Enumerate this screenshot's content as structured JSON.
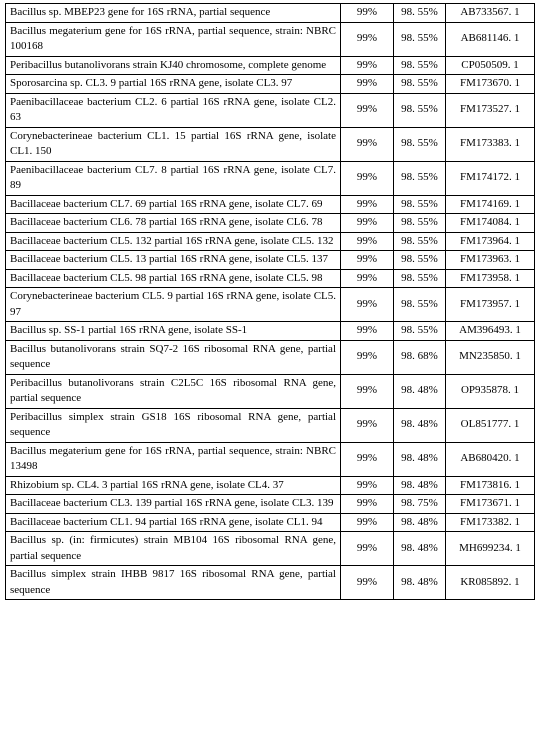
{
  "table": {
    "rows": [
      [
        "Bacillus sp. MBEP23 gene for 16S rRNA, partial sequence",
        "99%",
        "98. 55%",
        "AB733567. 1"
      ],
      [
        "Bacillus megaterium gene for 16S rRNA, partial sequence, strain: NBRC 100168",
        "99%",
        "98. 55%",
        "AB681146. 1"
      ],
      [
        "Peribacillus butanolivorans strain KJ40 chromosome, complete genome",
        "99%",
        "98. 55%",
        "CP050509. 1"
      ],
      [
        "Sporosarcina sp. CL3. 9 partial 16S rRNA gene, isolate CL3. 97",
        "99%",
        "98. 55%",
        "FM173670. 1"
      ],
      [
        "Paenibacillaceae bacterium CL2. 6 partial 16S rRNA gene, isolate CL2. 63",
        "99%",
        "98. 55%",
        "FM173527. 1"
      ],
      [
        "Corynebacterineae bacterium CL1. 15 partial 16S rRNA gene, isolate CL1. 150",
        "99%",
        "98. 55%",
        "FM173383. 1"
      ],
      [
        "Paenibacillaceae bacterium CL7. 8 partial 16S rRNA gene, isolate CL7. 89",
        "99%",
        "98. 55%",
        "FM174172. 1"
      ],
      [
        "Bacillaceae bacterium CL7. 69 partial 16S rRNA gene, isolate CL7. 69",
        "99%",
        "98. 55%",
        "FM174169. 1"
      ],
      [
        "Bacillaceae bacterium CL6. 78 partial 16S rRNA gene, isolate CL6. 78",
        "99%",
        "98. 55%",
        "FM174084. 1"
      ],
      [
        "Bacillaceae bacterium CL5. 132 partial 16S rRNA gene, isolate CL5. 132",
        "99%",
        "98. 55%",
        "FM173964. 1"
      ],
      [
        "Bacillaceae bacterium CL5. 13 partial 16S rRNA gene, isolate CL5. 137",
        "99%",
        "98. 55%",
        "FM173963. 1"
      ],
      [
        "Bacillaceae bacterium CL5. 98 partial 16S rRNA gene, isolate CL5. 98",
        "99%",
        "98. 55%",
        "FM173958. 1"
      ],
      [
        "Corynebacterineae bacterium CL5. 9 partial 16S rRNA gene, isolate CL5. 97",
        "99%",
        "98. 55%",
        "FM173957. 1"
      ],
      [
        "Bacillus sp. SS-1 partial 16S rRNA gene, isolate SS-1",
        "99%",
        "98. 55%",
        "AM396493. 1"
      ],
      [
        "Bacillus butanolivorans strain SQ7-2 16S ribosomal RNA gene, partial sequence",
        "99%",
        "98. 68%",
        "MN235850. 1"
      ],
      [
        "Peribacillus butanolivorans strain C2L5C 16S ribosomal RNA gene, partial sequence",
        "99%",
        "98. 48%",
        "OP935878. 1"
      ],
      [
        "Peribacillus simplex strain GS18 16S ribosomal RNA gene, partial sequence",
        "99%",
        "98. 48%",
        "OL851777. 1"
      ],
      [
        "Bacillus megaterium gene for 16S rRNA, partial sequence, strain: NBRC 13498",
        "99%",
        "98. 48%",
        "AB680420. 1"
      ],
      [
        "Rhizobium sp. CL4. 3 partial 16S rRNA gene, isolate CL4. 37",
        "99%",
        "98. 48%",
        "FM173816. 1"
      ],
      [
        "Bacillaceae bacterium CL3. 139 partial 16S rRNA gene, isolate CL3. 139",
        "99%",
        "98. 75%",
        "FM173671. 1"
      ],
      [
        "Bacillaceae bacterium CL1. 94 partial 16S rRNA gene, isolate CL1. 94",
        "99%",
        "98. 48%",
        "FM173382. 1"
      ],
      [
        "Bacillus sp. (in: firmicutes) strain MB104 16S ribosomal RNA gene, partial sequence",
        "99%",
        "98. 48%",
        "MH699234. 1"
      ],
      [
        "Bacillus simplex strain IHBB 9817 16S ribosomal RNA gene, partial sequence",
        "99%",
        "98. 48%",
        "KR085892. 1"
      ]
    ]
  }
}
